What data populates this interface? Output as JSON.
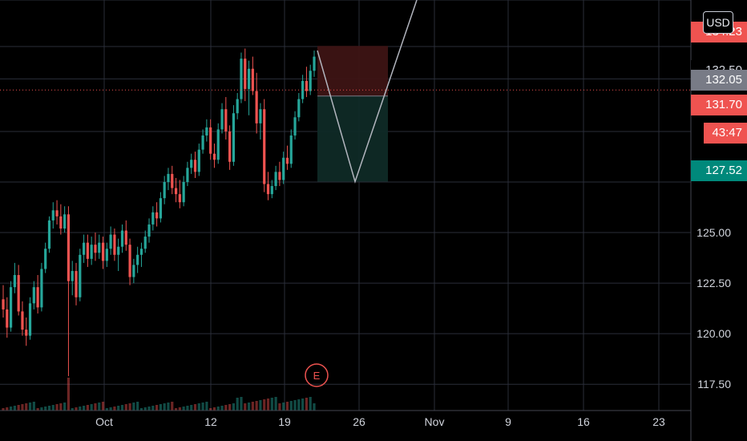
{
  "currency_button": {
    "label": "USD"
  },
  "price_tags": {
    "top_partial": "134.23",
    "upper_partial": "132.50",
    "current": "132.05",
    "last": "131.70",
    "countdown": "43:47",
    "target": "127.52"
  },
  "colors": {
    "background": "#000000",
    "grid": "#2a2e39",
    "up": "#26a69a",
    "down": "#ef5350",
    "current_tag": "#787b86",
    "target_tag": "#00897b",
    "stop_zone": "#3d1414",
    "profit_zone": "#0f2a26",
    "earnings": "#ef5350",
    "projection": "#b2b5be"
  },
  "earnings_marker": {
    "label": "E"
  },
  "chart_data": {
    "type": "candlestick",
    "y_ticks": [
      {
        "value": 125.0,
        "label": "125.00"
      },
      {
        "value": 122.5,
        "label": "122.50"
      },
      {
        "value": 120.0,
        "label": "120.00"
      },
      {
        "value": 117.5,
        "label": "117.50"
      }
    ],
    "x_ticks": [
      "Oct",
      "12",
      "19",
      "26",
      "Nov",
      "9",
      "16",
      "23"
    ],
    "ylim": [
      116.2,
      136.5
    ],
    "grid": true,
    "current_price": 132.05,
    "last_price": 131.7,
    "position": {
      "entry": 131.75,
      "stop": 134.23,
      "target": 127.52
    },
    "projection_path": [
      134.0,
      127.52,
      136.5
    ],
    "candles": [
      [
        121.7,
        122.4,
        120.8,
        121.2
      ],
      [
        121.2,
        121.8,
        119.8,
        120.3
      ],
      [
        120.3,
        122.6,
        120.1,
        122.3
      ],
      [
        122.3,
        123.5,
        122.0,
        122.9
      ],
      [
        122.9,
        123.4,
        120.9,
        121.1
      ],
      [
        121.1,
        121.6,
        119.9,
        120.2
      ],
      [
        120.2,
        120.8,
        119.4,
        119.9
      ],
      [
        119.9,
        121.8,
        119.7,
        121.5
      ],
      [
        121.5,
        122.6,
        121.2,
        122.3
      ],
      [
        122.3,
        122.9,
        121.0,
        121.3
      ],
      [
        121.3,
        123.5,
        121.1,
        123.2
      ],
      [
        123.2,
        124.5,
        123.0,
        124.2
      ],
      [
        124.2,
        125.8,
        124.0,
        125.6
      ],
      [
        125.6,
        126.5,
        125.2,
        126.1
      ],
      [
        126.1,
        126.6,
        125.4,
        125.8
      ],
      [
        125.8,
        126.4,
        124.9,
        125.2
      ],
      [
        125.2,
        126.3,
        125.0,
        125.9
      ],
      [
        125.9,
        126.3,
        117.9,
        122.6
      ],
      [
        122.6,
        123.6,
        121.9,
        123.1
      ],
      [
        123.1,
        123.5,
        121.4,
        121.8
      ],
      [
        121.8,
        124.2,
        121.6,
        123.9
      ],
      [
        123.9,
        124.9,
        123.5,
        124.5
      ],
      [
        124.5,
        124.9,
        123.3,
        123.7
      ],
      [
        123.7,
        124.8,
        123.4,
        124.4
      ],
      [
        124.4,
        125.0,
        123.6,
        124.0
      ],
      [
        124.0,
        124.9,
        123.7,
        124.5
      ],
      [
        124.5,
        124.8,
        123.2,
        123.6
      ],
      [
        123.6,
        124.5,
        123.3,
        124.2
      ],
      [
        124.2,
        125.3,
        123.9,
        124.9
      ],
      [
        124.9,
        125.2,
        123.6,
        123.9
      ],
      [
        123.9,
        124.7,
        123.1,
        124.3
      ],
      [
        124.3,
        125.4,
        124.0,
        125.1
      ],
      [
        125.1,
        125.6,
        124.1,
        124.4
      ],
      [
        124.4,
        124.7,
        122.4,
        122.8
      ],
      [
        122.8,
        123.7,
        122.5,
        123.4
      ],
      [
        123.4,
        124.3,
        123.0,
        123.9
      ],
      [
        123.9,
        124.5,
        123.3,
        124.2
      ],
      [
        124.2,
        125.1,
        124.0,
        124.8
      ],
      [
        124.8,
        125.7,
        124.5,
        125.4
      ],
      [
        125.4,
        126.3,
        125.1,
        126.0
      ],
      [
        126.0,
        126.5,
        125.3,
        125.7
      ],
      [
        125.7,
        127.0,
        125.5,
        126.7
      ],
      [
        126.7,
        127.8,
        126.4,
        127.5
      ],
      [
        127.5,
        128.2,
        127.1,
        127.9
      ],
      [
        127.9,
        128.3,
        126.9,
        127.2
      ],
      [
        127.2,
        127.7,
        126.5,
        126.9
      ],
      [
        126.9,
        127.6,
        126.2,
        126.5
      ],
      [
        126.5,
        127.8,
        126.3,
        127.5
      ],
      [
        127.5,
        128.5,
        127.3,
        128.2
      ],
      [
        128.2,
        128.9,
        127.9,
        128.6
      ],
      [
        128.6,
        129.0,
        127.7,
        128.0
      ],
      [
        128.0,
        129.4,
        127.8,
        129.1
      ],
      [
        129.1,
        130.1,
        128.9,
        129.8
      ],
      [
        129.8,
        130.6,
        129.5,
        130.2
      ],
      [
        130.2,
        130.6,
        128.6,
        128.9
      ],
      [
        128.9,
        129.4,
        128.2,
        128.6
      ],
      [
        128.6,
        130.4,
        128.4,
        130.1
      ],
      [
        130.1,
        131.4,
        129.9,
        131.1
      ],
      [
        131.1,
        131.7,
        129.6,
        130.0
      ],
      [
        130.0,
        130.3,
        128.1,
        128.5
      ],
      [
        128.5,
        131.3,
        128.3,
        130.9
      ],
      [
        130.9,
        131.9,
        130.6,
        131.6
      ],
      [
        131.6,
        133.9,
        131.4,
        133.6
      ],
      [
        133.6,
        134.1,
        131.5,
        132.1
      ],
      [
        132.1,
        133.5,
        130.8,
        133.1
      ],
      [
        133.1,
        133.7,
        131.8,
        132.0
      ],
      [
        132.0,
        132.9,
        129.9,
        130.4
      ],
      [
        130.4,
        131.4,
        129.6,
        131.1
      ],
      [
        131.1,
        131.6,
        127.0,
        127.4
      ],
      [
        127.4,
        128.0,
        126.6,
        126.9
      ],
      [
        126.9,
        127.6,
        126.7,
        127.3
      ],
      [
        127.3,
        128.3,
        127.1,
        128.0
      ],
      [
        128.0,
        128.5,
        127.3,
        127.6
      ],
      [
        127.6,
        129.0,
        127.4,
        128.7
      ],
      [
        128.7,
        129.3,
        128.1,
        128.4
      ],
      [
        128.4,
        130.1,
        128.2,
        129.8
      ],
      [
        129.8,
        131.0,
        129.6,
        130.7
      ],
      [
        130.7,
        131.9,
        130.5,
        131.6
      ],
      [
        131.6,
        132.8,
        131.4,
        132.5
      ],
      [
        132.5,
        133.2,
        131.7,
        132.0
      ],
      [
        132.0,
        133.3,
        131.8,
        133.0
      ],
      [
        133.0,
        134.0,
        132.7,
        133.7
      ]
    ]
  }
}
